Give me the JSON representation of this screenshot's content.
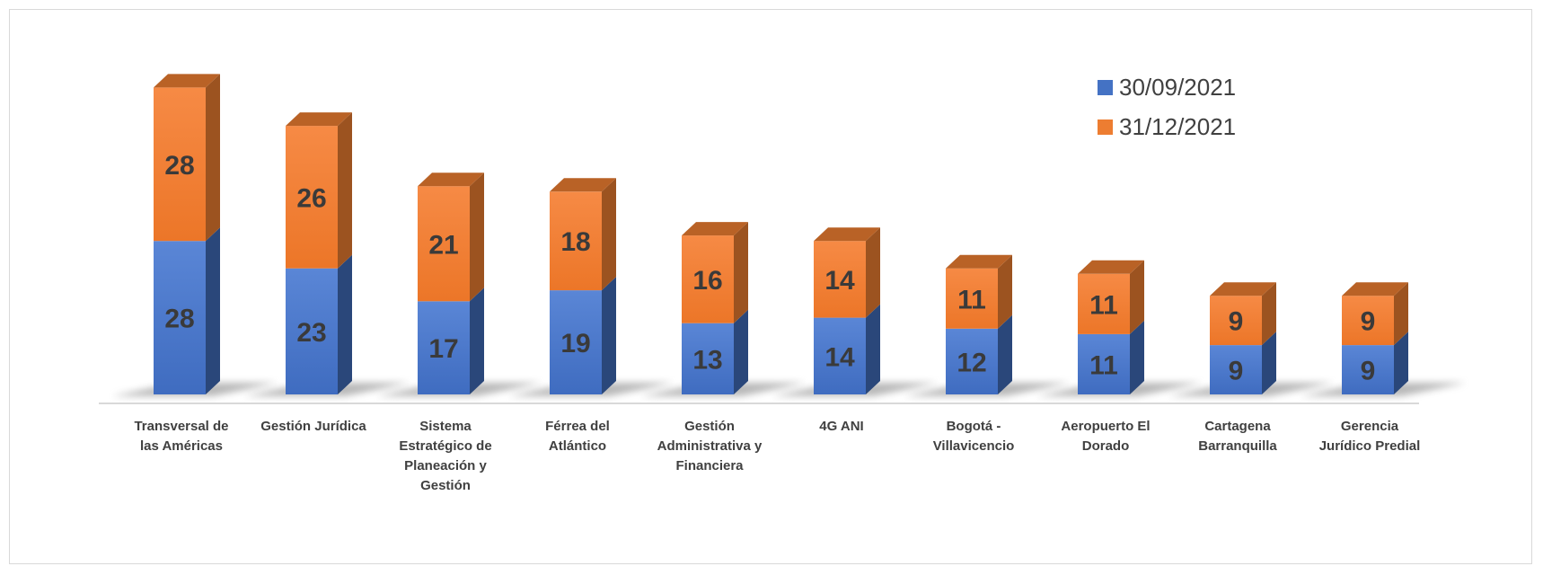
{
  "chart_data": {
    "type": "bar",
    "stacked": true,
    "style": "3d-column",
    "categories": [
      [
        "Transversal de",
        "las Américas"
      ],
      [
        "Gestión Jurídica"
      ],
      [
        "Sistema",
        "Estratégico de",
        "Planeación y",
        "Gestión"
      ],
      [
        "Férrea del",
        "Atlántico"
      ],
      [
        "Gestión",
        "Administrativa y",
        "Financiera"
      ],
      [
        "4G ANI"
      ],
      [
        "Bogotá -",
        "Villavicencio"
      ],
      [
        "Aeropuerto El",
        "Dorado"
      ],
      [
        "Cartagena",
        "Barranquilla"
      ],
      [
        "Gerencia",
        "Jurídico Predial"
      ]
    ],
    "series": [
      {
        "name": "30/09/2021",
        "color": "#4472C4",
        "values": [
          28,
          23,
          17,
          19,
          13,
          14,
          12,
          11,
          9,
          9
        ]
      },
      {
        "name": "31/12/2021",
        "color": "#ED7D31",
        "values": [
          28,
          26,
          21,
          18,
          16,
          14,
          11,
          11,
          9,
          9
        ]
      }
    ],
    "legend_position": "top-right",
    "grid": false
  }
}
